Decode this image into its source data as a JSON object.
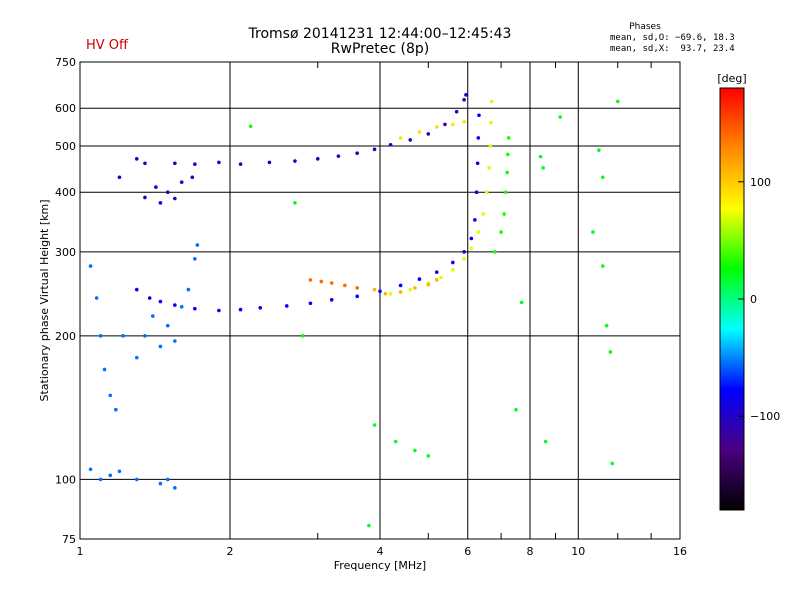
{
  "header": {
    "title": "Tromsø 20141231 12:44:00–12:45:43",
    "subtitle": "RwPretec (8p)",
    "hv_status": "HV Off",
    "hv_color": "#cc0000"
  },
  "phase_stats": {
    "title": "Phases",
    "o_mode": "mean, sd,O: −69.6, 18.3",
    "x_mode": "mean, sd,X:  93.7, 23.4"
  },
  "chart_data": {
    "type": "scatter",
    "xlabel": "Frequency [MHz]",
    "ylabel": "Stationary phase Virtual Height [km]",
    "x_scale": "log",
    "y_scale": "log",
    "xlim": [
      1,
      16
    ],
    "ylim": [
      75,
      750
    ],
    "x_ticks": [
      1,
      2,
      4,
      6,
      8,
      10,
      16
    ],
    "x_tick_labels": [
      "1",
      "2",
      "4",
      "6",
      "8",
      "10",
      "16"
    ],
    "x_minor_ticks": [
      3,
      5,
      7,
      9,
      12,
      14
    ],
    "y_ticks": [
      75,
      100,
      200,
      300,
      400,
      500,
      600,
      750
    ],
    "y_tick_labels": [
      "75",
      "100",
      "200",
      "300",
      "400",
      "500",
      "600",
      "750"
    ],
    "grid": true,
    "colorbar": {
      "label": "[deg]",
      "range": [
        -180,
        180
      ],
      "ticks": [
        100,
        0,
        -100
      ],
      "tick_labels": [
        "100",
        "0",
        "−100"
      ],
      "colors": [
        "#000000",
        "#4b0082",
        "#0000ff",
        "#00ffff",
        "#00ff00",
        "#ffff00",
        "#ff8800",
        "#ff0000"
      ]
    },
    "series": [
      {
        "points": [
          [
            1.55,
            460
          ],
          [
            1.7,
            458
          ],
          [
            1.9,
            462
          ],
          [
            2.1,
            458
          ],
          [
            2.4,
            462
          ],
          [
            2.7,
            465
          ],
          [
            3.0,
            470
          ],
          [
            3.3,
            476
          ],
          [
            3.6,
            483
          ],
          [
            3.9,
            492
          ],
          [
            4.2,
            503
          ],
          [
            4.6,
            515
          ],
          [
            5.0,
            530
          ],
          [
            5.4,
            555
          ],
          [
            5.7,
            590
          ],
          [
            5.9,
            625
          ],
          [
            5.95,
            640
          ],
          [
            1.2,
            430
          ],
          [
            1.3,
            470
          ],
          [
            1.35,
            460
          ],
          [
            1.42,
            410
          ],
          [
            1.5,
            400
          ],
          [
            1.6,
            420
          ],
          [
            1.68,
            430
          ],
          [
            1.35,
            390
          ],
          [
            1.45,
            380
          ],
          [
            1.55,
            388
          ]
        ],
        "phase": -100
      },
      {
        "points": [
          [
            1.3,
            250
          ],
          [
            1.38,
            240
          ],
          [
            1.45,
            236
          ],
          [
            1.55,
            232
          ],
          [
            1.7,
            228
          ],
          [
            1.9,
            226
          ],
          [
            2.1,
            227
          ],
          [
            2.3,
            229
          ],
          [
            2.6,
            231
          ],
          [
            2.9,
            234
          ],
          [
            3.2,
            238
          ],
          [
            3.6,
            242
          ],
          [
            4.0,
            248
          ],
          [
            4.4,
            255
          ],
          [
            4.8,
            263
          ],
          [
            5.2,
            272
          ],
          [
            5.6,
            285
          ],
          [
            5.9,
            300
          ],
          [
            6.1,
            320
          ],
          [
            6.2,
            350
          ],
          [
            6.25,
            400
          ],
          [
            6.28,
            460
          ],
          [
            6.3,
            520
          ],
          [
            6.32,
            580
          ]
        ],
        "phase": -80
      },
      {
        "points": [
          [
            1.05,
            280
          ],
          [
            1.08,
            240
          ],
          [
            1.1,
            200
          ],
          [
            1.12,
            170
          ],
          [
            1.15,
            150
          ],
          [
            1.18,
            140
          ],
          [
            1.22,
            200
          ],
          [
            1.3,
            180
          ],
          [
            1.35,
            200
          ],
          [
            1.4,
            220
          ],
          [
            1.45,
            190
          ],
          [
            1.5,
            210
          ],
          [
            1.55,
            195
          ],
          [
            1.6,
            230
          ],
          [
            1.65,
            250
          ],
          [
            1.7,
            290
          ],
          [
            1.72,
            310
          ],
          [
            1.05,
            105
          ],
          [
            1.1,
            100
          ],
          [
            1.15,
            102
          ],
          [
            1.2,
            104
          ],
          [
            1.3,
            100
          ],
          [
            1.45,
            98
          ],
          [
            1.5,
            100
          ],
          [
            1.55,
            96
          ]
        ],
        "phase": -55
      },
      {
        "points": [
          [
            4.2,
            245
          ],
          [
            4.6,
            250
          ],
          [
            5.0,
            258
          ],
          [
            5.3,
            265
          ],
          [
            5.6,
            275
          ],
          [
            5.9,
            290
          ],
          [
            6.1,
            305
          ],
          [
            6.3,
            330
          ],
          [
            6.45,
            360
          ],
          [
            6.55,
            400
          ],
          [
            6.62,
            450
          ],
          [
            6.66,
            500
          ],
          [
            6.68,
            560
          ],
          [
            6.7,
            620
          ]
        ],
        "phase": 70
      },
      {
        "points": [
          [
            3.9,
            250
          ],
          [
            4.1,
            245
          ],
          [
            4.4,
            247
          ],
          [
            4.7,
            252
          ],
          [
            5.0,
            256
          ],
          [
            5.2,
            262
          ]
        ],
        "phase": 110
      },
      {
        "points": [
          [
            2.9,
            262
          ],
          [
            3.05,
            260
          ],
          [
            3.2,
            258
          ],
          [
            3.4,
            255
          ],
          [
            3.6,
            252
          ]
        ],
        "phase": 140
      },
      {
        "points": [
          [
            4.4,
            520
          ],
          [
            4.8,
            535
          ],
          [
            5.2,
            548
          ],
          [
            5.6,
            555
          ],
          [
            5.9,
            562
          ]
        ],
        "phase": 90
      },
      {
        "points": [
          [
            6.8,
            300
          ],
          [
            7.0,
            330
          ],
          [
            7.1,
            360
          ],
          [
            7.15,
            400
          ],
          [
            7.2,
            440
          ],
          [
            7.22,
            480
          ],
          [
            7.25,
            520
          ]
        ],
        "phase": 30
      },
      {
        "points": [
          [
            9.2,
            575
          ],
          [
            11.0,
            490
          ],
          [
            11.2,
            280
          ],
          [
            11.4,
            210
          ],
          [
            11.6,
            185
          ],
          [
            11.7,
            108
          ],
          [
            12.0,
            620
          ],
          [
            8.5,
            450
          ],
          [
            8.6,
            120
          ],
          [
            8.4,
            475
          ],
          [
            7.7,
            235
          ],
          [
            7.5,
            140
          ],
          [
            10.7,
            330
          ],
          [
            11.2,
            430
          ],
          [
            2.2,
            550
          ],
          [
            2.7,
            380
          ],
          [
            2.8,
            200
          ],
          [
            3.8,
            80
          ],
          [
            3.9,
            130
          ],
          [
            4.3,
            120
          ],
          [
            4.7,
            115
          ],
          [
            5.0,
            112
          ]
        ],
        "phase": 20
      }
    ]
  }
}
